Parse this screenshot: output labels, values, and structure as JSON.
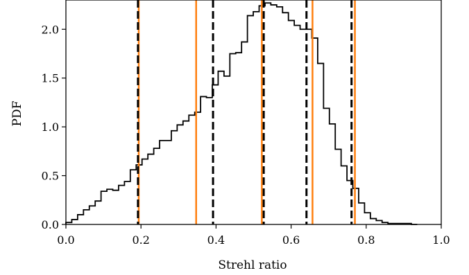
{
  "chart_data": {
    "type": "histogram",
    "title": "",
    "xlabel": "Strehl ratio",
    "ylabel": "PDF",
    "xlim": [
      0.0,
      1.0
    ],
    "ylim": [
      0.0,
      2.3
    ],
    "grid": false,
    "legend": "none",
    "xticks": [
      "0.0",
      "0.2",
      "0.4",
      "0.6",
      "0.8",
      "1.0"
    ],
    "xtick_values": [
      0.0,
      0.2,
      0.4,
      0.6,
      0.8,
      1.0
    ],
    "yticks": [
      "0.0",
      "0.5",
      "1.0",
      "1.5",
      "2.0"
    ],
    "ytick_values": [
      0.0,
      0.5,
      1.0,
      1.5,
      2.0
    ],
    "histogram": {
      "bin_width": 0.0156,
      "x_start": 0.0,
      "values": [
        0.02,
        0.05,
        0.1,
        0.15,
        0.19,
        0.24,
        0.34,
        0.36,
        0.35,
        0.4,
        0.44,
        0.56,
        0.61,
        0.67,
        0.72,
        0.78,
        0.86,
        0.86,
        0.96,
        1.02,
        1.06,
        1.12,
        1.15,
        1.31,
        1.3,
        1.43,
        1.57,
        1.52,
        1.75,
        1.76,
        1.87,
        2.14,
        2.18,
        2.24,
        2.27,
        2.25,
        2.23,
        2.17,
        2.09,
        2.04,
        2.0,
        2.0,
        1.91,
        1.65,
        1.19,
        1.03,
        0.77,
        0.6,
        0.45,
        0.37,
        0.22,
        0.12,
        0.06,
        0.04,
        0.02,
        0.01,
        0.01,
        0.01,
        0.01,
        0.0
      ],
      "color": "#000000"
    },
    "vlines": [
      {
        "x": 0.194,
        "color": "#ff7f0e",
        "style": "solid"
      },
      {
        "x": 0.347,
        "color": "#ff7f0e",
        "style": "solid"
      },
      {
        "x": 0.522,
        "color": "#ff7f0e",
        "style": "solid"
      },
      {
        "x": 0.657,
        "color": "#ff7f0e",
        "style": "solid"
      },
      {
        "x": 0.77,
        "color": "#ff7f0e",
        "style": "solid"
      },
      {
        "x": 0.192,
        "color": "#000000",
        "style": "dashed"
      },
      {
        "x": 0.392,
        "color": "#000000",
        "style": "dashed"
      },
      {
        "x": 0.527,
        "color": "#000000",
        "style": "dashed"
      },
      {
        "x": 0.641,
        "color": "#000000",
        "style": "dashed"
      },
      {
        "x": 0.761,
        "color": "#000000",
        "style": "dashed"
      }
    ]
  }
}
